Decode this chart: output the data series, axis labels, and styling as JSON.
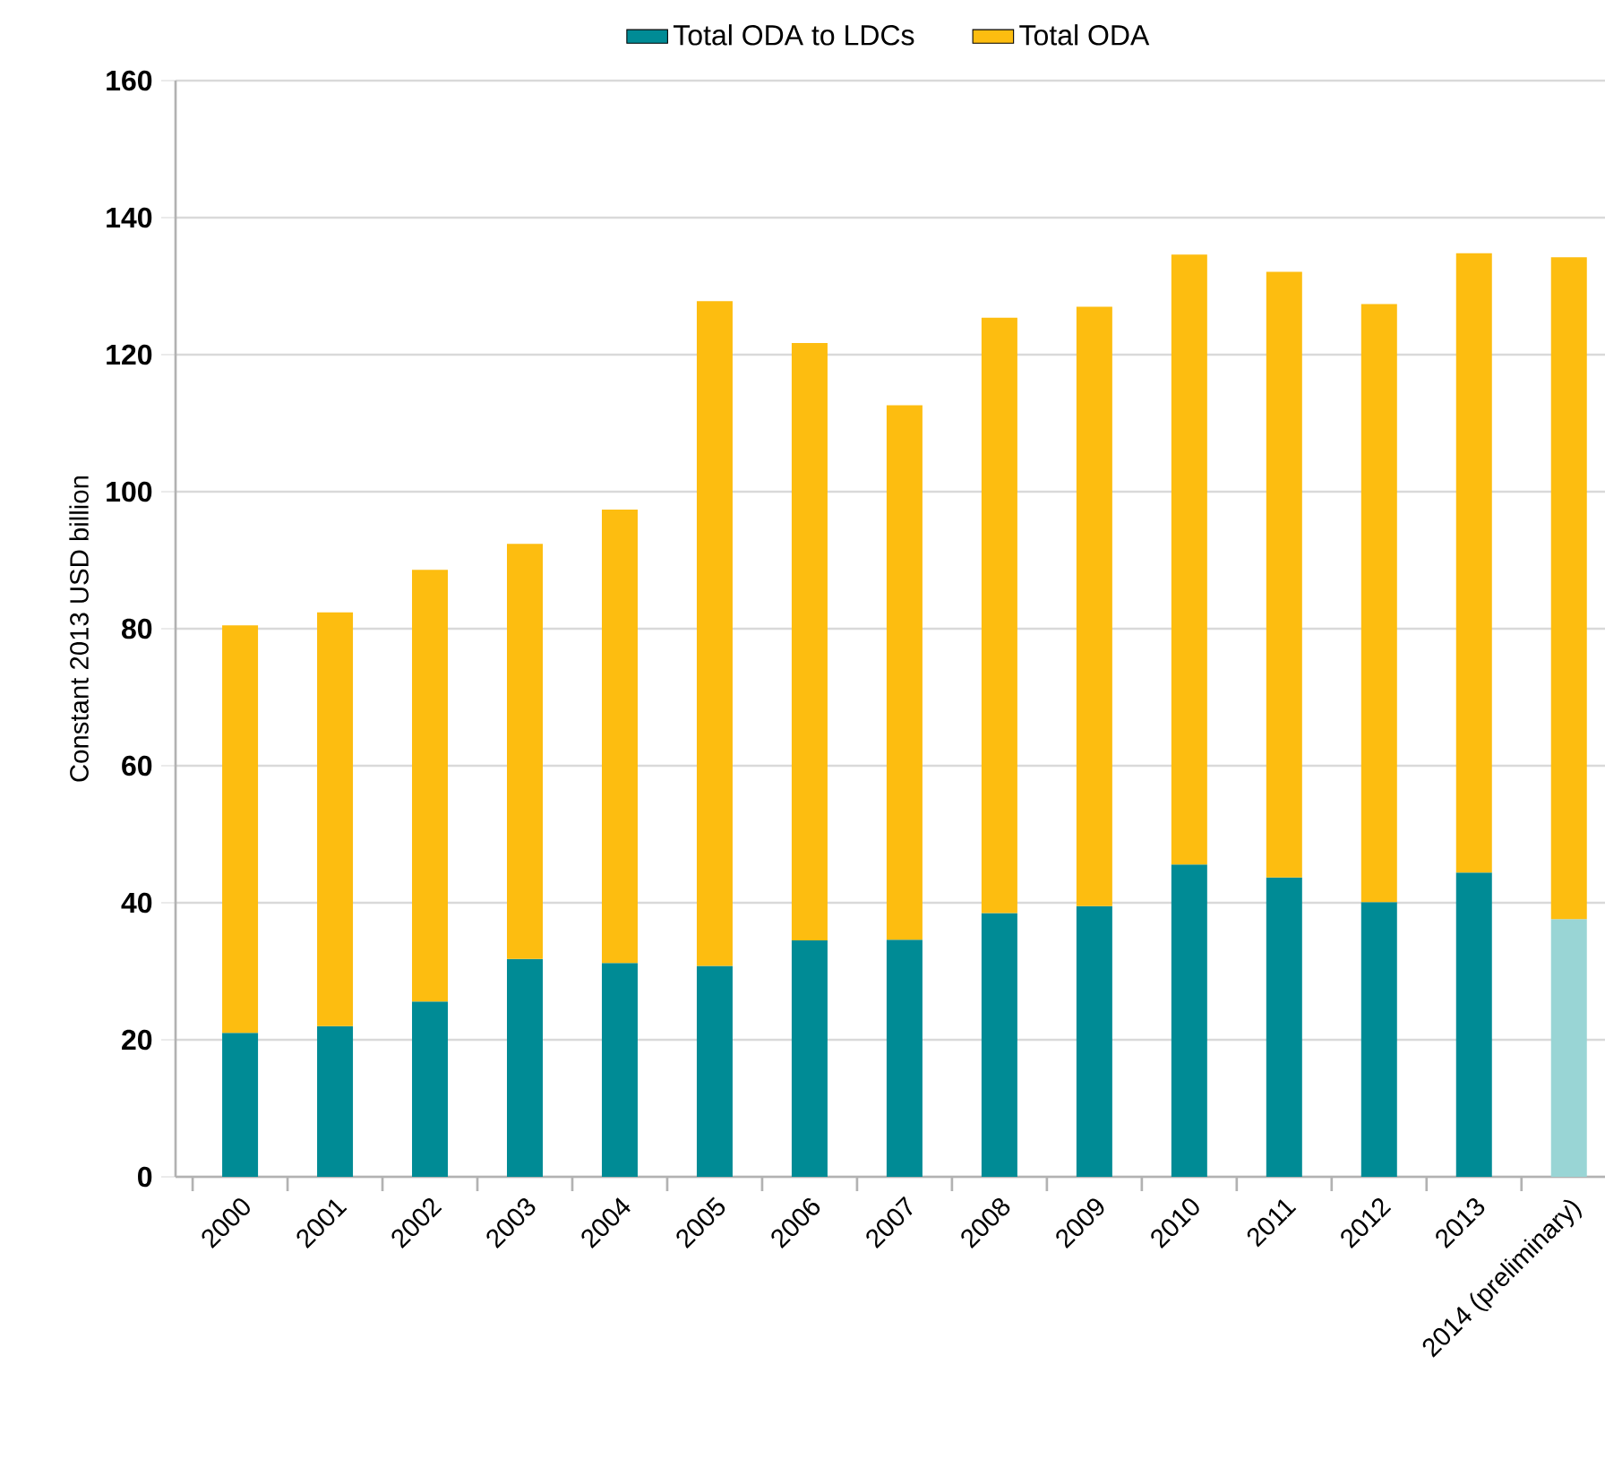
{
  "chart_data": {
    "type": "bar",
    "stacked": true,
    "ylabel": "Constant 2013 USD billion",
    "categories": [
      "2000",
      "2001",
      "2002",
      "2003",
      "2004",
      "2005",
      "2006",
      "2007",
      "2008",
      "2009",
      "2010",
      "2011",
      "2012",
      "2013",
      "2014 (preliminary)"
    ],
    "series": [
      {
        "name": "Total ODA to LDCs",
        "color": "#008b95",
        "colors": [
          "#008b95",
          "#008b95",
          "#008b95",
          "#008b95",
          "#008b95",
          "#008b95",
          "#008b95",
          "#008b95",
          "#008b95",
          "#008b95",
          "#008b95",
          "#008b95",
          "#008b95",
          "#008b95",
          "#99d5d5"
        ],
        "values": [
          21,
          22,
          25.6,
          31.8,
          31.2,
          30.8,
          34.5,
          34.6,
          38.5,
          39.5,
          45.6,
          43.7,
          40.1,
          44.4,
          37.6
        ]
      },
      {
        "name": "Total ODA",
        "color": "#fdbd10",
        "values": [
          59.5,
          60.4,
          63.0,
          60.6,
          66.2,
          97.0,
          87.2,
          78.0,
          86.9,
          87.5,
          89.0,
          88.4,
          87.3,
          90.4,
          96.6
        ]
      }
    ],
    "ylim": [
      0,
      160
    ],
    "yticks": [
      0,
      20,
      40,
      60,
      80,
      100,
      120,
      140,
      160
    ],
    "grid": "y",
    "legend": "top"
  }
}
